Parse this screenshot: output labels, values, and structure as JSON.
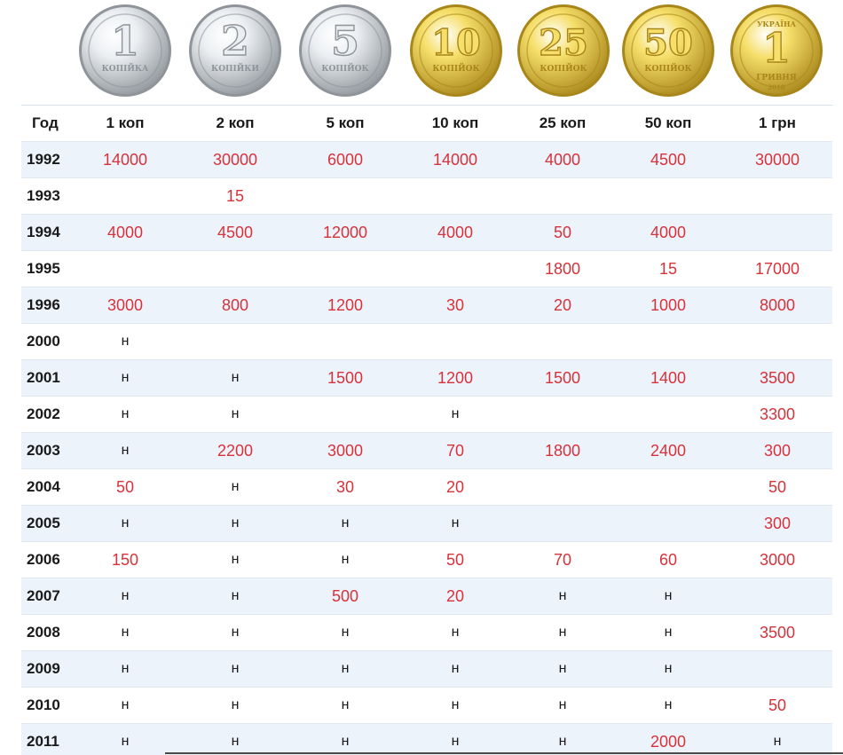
{
  "coins": [
    {
      "numeral": "1",
      "word": "КОПІЙКА",
      "metal": "silver"
    },
    {
      "numeral": "2",
      "word": "КОПІЙКИ",
      "metal": "silver"
    },
    {
      "numeral": "5",
      "word": "КОПІЙОК",
      "metal": "silver"
    },
    {
      "numeral": "10",
      "word": "КОПІЙОК",
      "metal": "gold"
    },
    {
      "numeral": "25",
      "word": "КОПІЙОК",
      "metal": "gold"
    },
    {
      "numeral": "50",
      "word": "КОПІЙОК",
      "metal": "gold"
    },
    {
      "numeral": "1",
      "word": "ГРИВНЯ",
      "top_word": "УКРАЇНА",
      "year": "2018",
      "metal": "gold"
    }
  ],
  "table": {
    "headers": [
      "Год",
      "1 коп",
      "2 коп",
      "5 коп",
      "10 коп",
      "25 коп",
      "50 коп",
      "1 грн"
    ],
    "rows": [
      {
        "year": "1992",
        "values": [
          "14000",
          "30000",
          "6000",
          "14000",
          "4000",
          "4500",
          "30000"
        ]
      },
      {
        "year": "1993",
        "values": [
          "",
          "15",
          "",
          "",
          "",
          "",
          ""
        ]
      },
      {
        "year": "1994",
        "values": [
          "4000",
          "4500",
          "12000",
          "4000",
          "50",
          "4000",
          ""
        ]
      },
      {
        "year": "1995",
        "values": [
          "",
          "",
          "",
          "",
          "1800",
          "15",
          "17000"
        ]
      },
      {
        "year": "1996",
        "values": [
          "3000",
          "800",
          "1200",
          "30",
          "20",
          "1000",
          "8000"
        ]
      },
      {
        "year": "2000",
        "values": [
          "н",
          "",
          "",
          "",
          "",
          "",
          ""
        ]
      },
      {
        "year": "2001",
        "values": [
          "н",
          "н",
          "1500",
          "1200",
          "1500",
          "1400",
          "3500"
        ]
      },
      {
        "year": "2002",
        "values": [
          "н",
          "н",
          "",
          "н",
          "",
          "",
          "3300"
        ]
      },
      {
        "year": "2003",
        "values": [
          "н",
          "2200",
          "3000",
          "70",
          "1800",
          "2400",
          "300"
        ]
      },
      {
        "year": "2004",
        "values": [
          "50",
          "н",
          "30",
          "20",
          "",
          "",
          "50"
        ]
      },
      {
        "year": "2005",
        "values": [
          "н",
          "н",
          "н",
          "н",
          "",
          "",
          "300"
        ]
      },
      {
        "year": "2006",
        "values": [
          "150",
          "н",
          "н",
          "50",
          "70",
          "60",
          "3000"
        ]
      },
      {
        "year": "2007",
        "values": [
          "н",
          "н",
          "500",
          "20",
          "н",
          "н",
          ""
        ]
      },
      {
        "year": "2008",
        "values": [
          "н",
          "н",
          "н",
          "н",
          "н",
          "н",
          "3500"
        ]
      },
      {
        "year": "2009",
        "values": [
          "н",
          "н",
          "н",
          "н",
          "н",
          "н",
          ""
        ]
      },
      {
        "year": "2010",
        "values": [
          "н",
          "н",
          "н",
          "н",
          "н",
          "н",
          "50"
        ]
      },
      {
        "year": "2011",
        "values": [
          "н",
          "н",
          "н",
          "н",
          "н",
          "2000",
          "н"
        ]
      }
    ]
  },
  "colors": {
    "value_red": "#d6323a",
    "row_shade": "#edf3fb",
    "silver_light": "#eceff2",
    "silver_dark": "#8e9499",
    "gold_light": "#f6df6a",
    "gold_dark": "#a8861a"
  }
}
